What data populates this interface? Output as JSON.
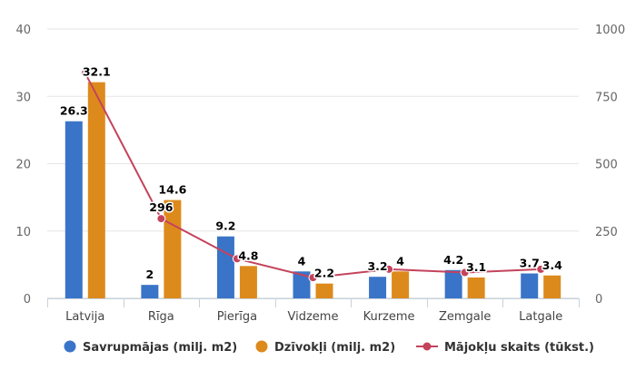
{
  "chart_data": {
    "type": "bar",
    "title": "",
    "categories": [
      "Latvija",
      "Rīga",
      "Pierīga",
      "Vidzeme",
      "Kurzeme",
      "Zemgale",
      "Latgale"
    ],
    "left_axis": {
      "min": 0,
      "max": 40,
      "ticks": [
        0,
        10,
        20,
        30,
        40
      ]
    },
    "right_axis": {
      "min": 0,
      "max": 1000,
      "ticks": [
        0,
        250,
        500,
        750,
        1000
      ]
    },
    "series": [
      {
        "name": "Savrupmājas (milj. m2)",
        "kind": "bar",
        "axis": "left",
        "color": "#3a74c8",
        "values": [
          26.3,
          2,
          9.2,
          4,
          3.2,
          4.2,
          3.7
        ],
        "labels": [
          "26.3",
          "2",
          "9.2",
          "4",
          "3.2",
          "4.2",
          "3.7"
        ]
      },
      {
        "name": "Dzīvokļi (milj. m2)",
        "kind": "bar",
        "axis": "left",
        "color": "#dd8a1c",
        "values": [
          32.1,
          14.6,
          4.8,
          2.2,
          4,
          3.1,
          3.4
        ],
        "labels": [
          "32.1",
          "14.6",
          "4.8",
          "2.2",
          "4",
          "3.1",
          "3.4"
        ]
      },
      {
        "name": "Mājokļu skaits (tūkst.)",
        "kind": "line",
        "axis": "right",
        "color": "#c4435c",
        "values": [
          836,
          296,
          147,
          77,
          108,
          96,
          108
        ],
        "labels": [
          "",
          "296",
          "",
          "",
          "",
          "",
          ""
        ]
      }
    ],
    "grid": true,
    "legend": "bottom"
  }
}
